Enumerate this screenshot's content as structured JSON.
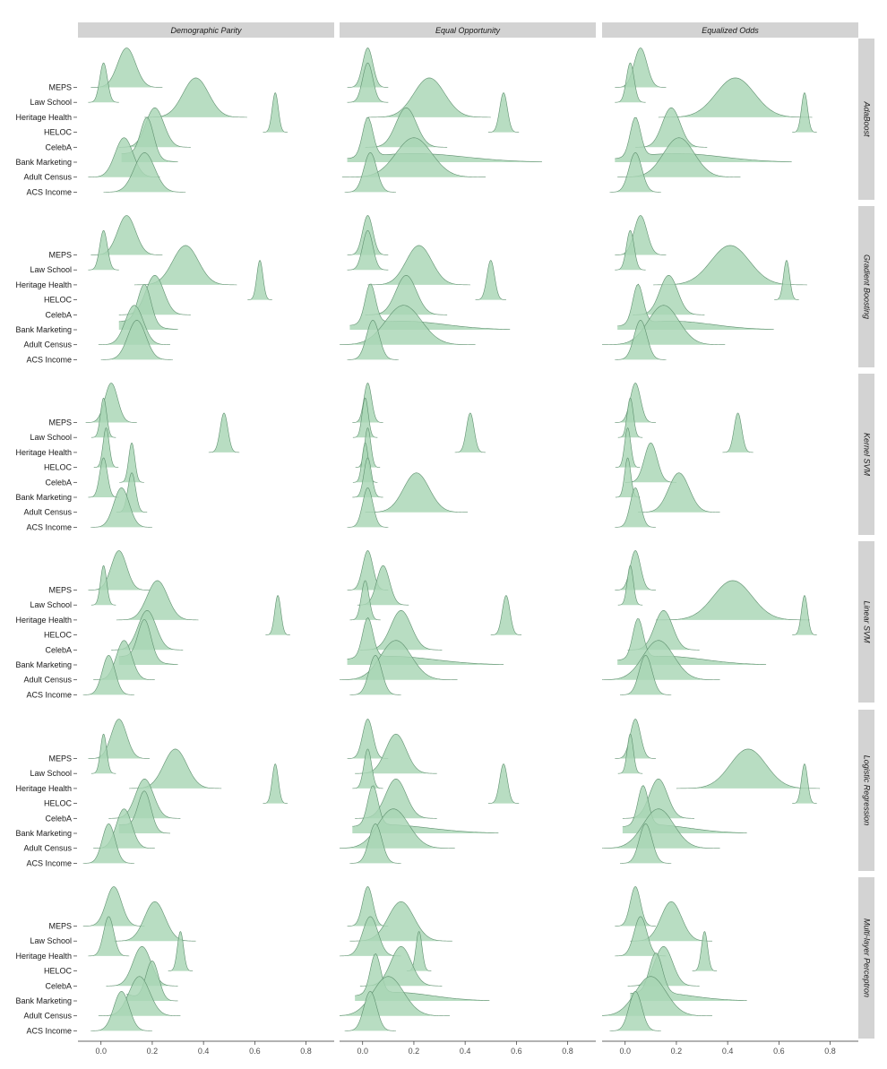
{
  "chart_data": {
    "type": "ridgeline",
    "columns": [
      "Demographic Parity",
      "Equal Opportunity",
      "Equalized Odds"
    ],
    "rows": [
      "AdaBoost",
      "Gradient Boosting",
      "Kernel SVM",
      "Linear SVM",
      "Logistic Regression",
      "Multi-layer Perceptron"
    ],
    "datasets": [
      "MEPS",
      "Law School",
      "Heritage Health",
      "HELOC",
      "CelebA",
      "Bank Marketing",
      "Adult Census",
      "ACS Income"
    ],
    "x_ticks": [
      "0.0",
      "0.2",
      "0.4",
      "0.6",
      "0.8"
    ],
    "x_tick_values": [
      0,
      0.2,
      0.4,
      0.6,
      0.8
    ],
    "xlim": [
      -0.09,
      0.91
    ],
    "fill_color": "#a8d5b5",
    "line_color": "#5e8f6e",
    "strip_color": "#d3d3d3",
    "peaks": [
      [
        [
          [
            0.1,
            0.035
          ],
          [
            0.01,
            0.015
          ],
          [
            0.37,
            0.05
          ],
          [
            0.68,
            0.012
          ],
          [
            0.21,
            0.035
          ],
          [
            0.18,
            0.025,
            0.1,
            0.08
          ],
          [
            0.09,
            0.035
          ],
          [
            0.17,
            0.04
          ]
        ],
        [
          [
            0.02,
            0.02
          ],
          [
            0.02,
            0.02
          ],
          [
            0.26,
            0.06
          ],
          [
            0.55,
            0.015
          ],
          [
            0.17,
            0.04
          ],
          [
            0.02,
            0.02,
            0.2,
            0.2
          ],
          [
            0.2,
            0.07
          ],
          [
            0.03,
            0.025
          ]
        ],
        [
          [
            0.06,
            0.025
          ],
          [
            0.02,
            0.015
          ],
          [
            0.43,
            0.075
          ],
          [
            0.7,
            0.012
          ],
          [
            0.18,
            0.035
          ],
          [
            0.04,
            0.02,
            0.2,
            0.18
          ],
          [
            0.21,
            0.06
          ],
          [
            0.04,
            0.025
          ]
        ]
      ],
      [
        [
          [
            0.1,
            0.035
          ],
          [
            0.01,
            0.015
          ],
          [
            0.33,
            0.05
          ],
          [
            0.62,
            0.012
          ],
          [
            0.21,
            0.035
          ],
          [
            0.17,
            0.025,
            0.1,
            0.08
          ],
          [
            0.13,
            0.035
          ],
          [
            0.14,
            0.035
          ]
        ],
        [
          [
            0.02,
            0.02
          ],
          [
            0.02,
            0.02
          ],
          [
            0.22,
            0.05
          ],
          [
            0.5,
            0.015
          ],
          [
            0.17,
            0.04
          ],
          [
            0.03,
            0.02,
            0.15,
            0.17
          ],
          [
            0.16,
            0.07
          ],
          [
            0.04,
            0.025
          ]
        ],
        [
          [
            0.06,
            0.025
          ],
          [
            0.02,
            0.015
          ],
          [
            0.41,
            0.075
          ],
          [
            0.63,
            0.012
          ],
          [
            0.17,
            0.035
          ],
          [
            0.05,
            0.02,
            0.18,
            0.16
          ],
          [
            0.15,
            0.06
          ],
          [
            0.06,
            0.025
          ]
        ]
      ],
      [
        [
          [
            0.04,
            0.025
          ],
          [
            0.01,
            0.012
          ],
          [
            0.48,
            0.015
          ],
          [
            0.02,
            0.012
          ],
          [
            0.12,
            0.012
          ],
          [
            0.01,
            0.015
          ],
          [
            0.12,
            0.015
          ],
          [
            0.08,
            0.03
          ]
        ],
        [
          [
            0.02,
            0.015
          ],
          [
            0.01,
            0.012
          ],
          [
            0.42,
            0.015
          ],
          [
            0.02,
            0.012
          ],
          [
            0.01,
            0.012
          ],
          [
            0.02,
            0.015
          ],
          [
            0.21,
            0.05
          ],
          [
            0.02,
            0.02
          ]
        ],
        [
          [
            0.04,
            0.02
          ],
          [
            0.02,
            0.012
          ],
          [
            0.44,
            0.015
          ],
          [
            0.01,
            0.012
          ],
          [
            0.1,
            0.025
          ],
          [
            0.01,
            0.012
          ],
          [
            0.21,
            0.04
          ],
          [
            0.04,
            0.02
          ]
        ]
      ],
      [
        [
          [
            0.07,
            0.03
          ],
          [
            0.01,
            0.012
          ],
          [
            0.22,
            0.04
          ],
          [
            0.69,
            0.012
          ],
          [
            0.18,
            0.035
          ],
          [
            0.17,
            0.025,
            0.1,
            0.08
          ],
          [
            0.09,
            0.03
          ],
          [
            0.03,
            0.025
          ]
        ],
        [
          [
            0.02,
            0.02
          ],
          [
            0.08,
            0.025
          ],
          [
            0.01,
            0.015
          ],
          [
            0.56,
            0.015
          ],
          [
            0.15,
            0.04
          ],
          [
            0.02,
            0.02,
            0.1,
            0.18
          ],
          [
            0.13,
            0.06
          ],
          [
            0.05,
            0.025
          ]
        ],
        [
          [
            0.04,
            0.02
          ],
          [
            0.02,
            0.012
          ],
          [
            0.42,
            0.075
          ],
          [
            0.7,
            0.012
          ],
          [
            0.15,
            0.035
          ],
          [
            0.05,
            0.02,
            0.15,
            0.16
          ],
          [
            0.13,
            0.06
          ],
          [
            0.08,
            0.025
          ]
        ]
      ],
      [
        [
          [
            0.07,
            0.03
          ],
          [
            0.01,
            0.012
          ],
          [
            0.29,
            0.045
          ],
          [
            0.68,
            0.012
          ],
          [
            0.17,
            0.035
          ],
          [
            0.17,
            0.025,
            0.08,
            0.06
          ],
          [
            0.09,
            0.03
          ],
          [
            0.03,
            0.025
          ]
        ],
        [
          [
            0.02,
            0.02
          ],
          [
            0.13,
            0.04
          ],
          [
            0.02,
            0.015
          ],
          [
            0.55,
            0.015
          ],
          [
            0.13,
            0.04
          ],
          [
            0.04,
            0.02,
            0.08,
            0.18
          ],
          [
            0.12,
            0.06
          ],
          [
            0.05,
            0.025
          ]
        ],
        [
          [
            0.04,
            0.02
          ],
          [
            0.02,
            0.012
          ],
          [
            0.48,
            0.07
          ],
          [
            0.7,
            0.012
          ],
          [
            0.13,
            0.035
          ],
          [
            0.07,
            0.02,
            0.1,
            0.15
          ],
          [
            0.13,
            0.06
          ],
          [
            0.08,
            0.025
          ]
        ]
      ],
      [
        [
          [
            0.05,
            0.03
          ],
          [
            0.21,
            0.04
          ],
          [
            0.03,
            0.02
          ],
          [
            0.31,
            0.012
          ],
          [
            0.16,
            0.035
          ],
          [
            0.2,
            0.025,
            0.06,
            0.06
          ],
          [
            0.15,
            0.04
          ],
          [
            0.08,
            0.03
          ]
        ],
        [
          [
            0.02,
            0.02
          ],
          [
            0.15,
            0.05
          ],
          [
            0.03,
            0.03
          ],
          [
            0.22,
            0.012
          ],
          [
            0.15,
            0.04
          ],
          [
            0.05,
            0.02,
            0.12,
            0.15
          ],
          [
            0.1,
            0.06
          ],
          [
            0.03,
            0.025
          ]
        ],
        [
          [
            0.04,
            0.02
          ],
          [
            0.18,
            0.04
          ],
          [
            0.06,
            0.025
          ],
          [
            0.31,
            0.012
          ],
          [
            0.15,
            0.035
          ],
          [
            0.12,
            0.025,
            0.1,
            0.15
          ],
          [
            0.1,
            0.06
          ],
          [
            0.04,
            0.025
          ]
        ]
      ]
    ]
  }
}
